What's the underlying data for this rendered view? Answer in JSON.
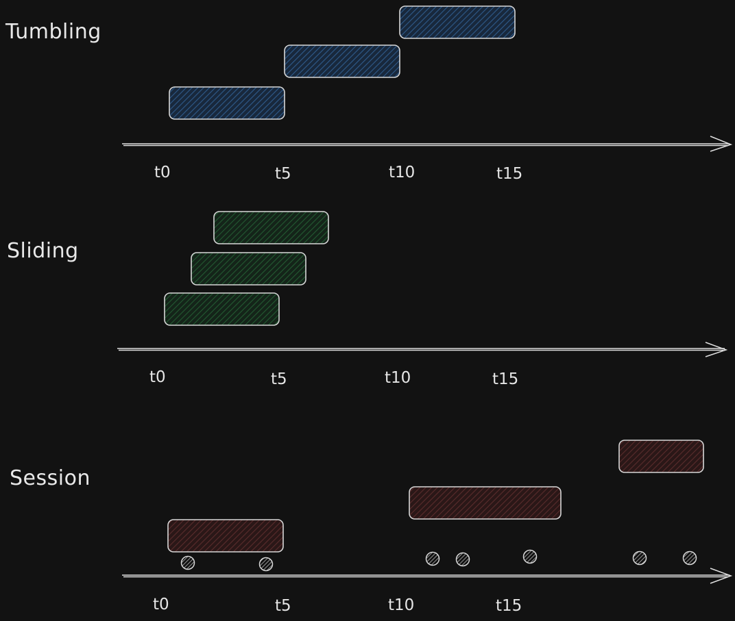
{
  "colors": {
    "background": "#121212",
    "stroke": "#d8d8d8",
    "tumbling_fill": "#1e3a5f",
    "sliding_fill": "#173a24",
    "session_fill": "#3d1f1f"
  },
  "sections": {
    "tumbling": {
      "title": "Tumbling",
      "ticks": [
        "t0",
        "t5",
        "t10",
        "t15"
      ]
    },
    "sliding": {
      "title": "Sliding",
      "ticks": [
        "t0",
        "t5",
        "t10",
        "t15"
      ]
    },
    "session": {
      "title": "Session",
      "ticks": [
        "t0",
        "t5",
        "t10",
        "t15"
      ]
    }
  }
}
